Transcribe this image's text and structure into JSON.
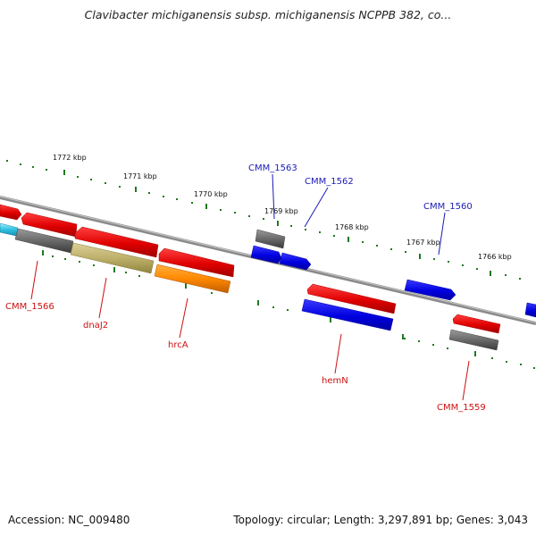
{
  "title": "Clavibacter michiganensis subsp. michiganensis NCPPB 382, co...",
  "footer": {
    "accession": "Accession: NC_009480",
    "stats": "Topology: circular; Length: 3,297,891 bp; Genes: 3,043"
  },
  "colors": {
    "forward_label": "#1a1ab4",
    "reverse_label": "#cc1111",
    "tick": "#1f7a1f",
    "backbone": "#8a8a8a"
  },
  "ruler_labels": [
    "1772 kbp",
    "1771 kbp",
    "1770 kbp",
    "1769 kbp",
    "1768 kbp",
    "1767 kbp",
    "1766 kbp"
  ],
  "gene_labels": {
    "cmm_1563": "CMM_1563",
    "cmm_1562": "CMM_1562",
    "cmm_1560": "CMM_1560",
    "cmm_1566": "CMM_1566",
    "dnaj2": "dnaJ2",
    "hrca": "hrcA",
    "hemn": "hemN",
    "cmm_1559": "CMM_1559"
  }
}
